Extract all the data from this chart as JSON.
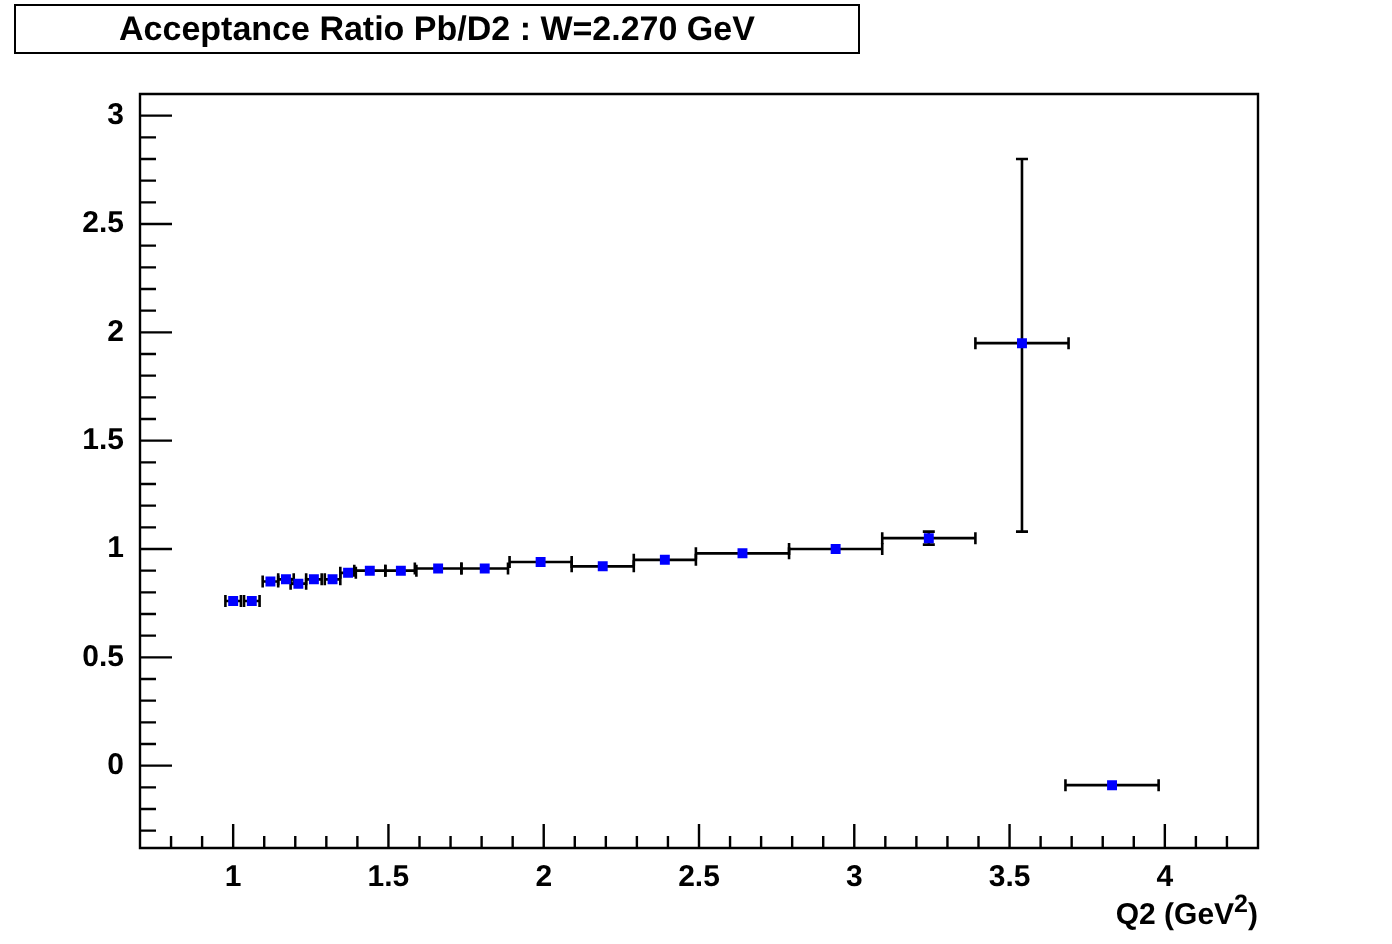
{
  "chart_data": {
    "type": "scatter",
    "title": "Acceptance Ratio Pb/D2 : W=2.270 GeV",
    "xlabel": "Q2 (GeV$^{2}$)",
    "x": [
      1.0,
      1.06,
      1.12,
      1.17,
      1.21,
      1.26,
      1.32,
      1.37,
      1.44,
      1.54,
      1.66,
      1.81,
      1.99,
      2.19,
      2.39,
      2.64,
      2.94,
      3.24,
      3.54,
      3.83
    ],
    "values": [
      0.76,
      0.76,
      0.85,
      0.86,
      0.84,
      0.86,
      0.86,
      0.89,
      0.9,
      0.9,
      0.91,
      0.91,
      0.94,
      0.92,
      0.95,
      0.98,
      1.0,
      1.05,
      1.95,
      -0.09
    ],
    "errors": [
      null,
      null,
      null,
      null,
      null,
      null,
      null,
      null,
      null,
      null,
      null,
      null,
      null,
      null,
      null,
      null,
      null,
      0.03,
      [
        1.08,
        2.8
      ],
      null
    ],
    "xerrors": [
      0.025,
      0.025,
      0.025,
      0.025,
      0.025,
      0.025,
      0.025,
      0.025,
      0.05,
      0.05,
      0.075,
      0.075,
      0.1,
      0.1,
      0.1,
      0.15,
      0.15,
      0.15,
      0.15,
      0.15
    ],
    "color": "#0000ff",
    "marker": "square",
    "xlim": [
      0.7,
      4.3
    ],
    "ylim": [
      -0.38,
      3.1
    ],
    "xticks": [
      {
        "value": 0.8,
        "label": null
      },
      {
        "value": 0.9,
        "label": null
      },
      1,
      {
        "value": 1.1,
        "label": null
      },
      {
        "value": 1.2,
        "label": null
      },
      {
        "value": 1.3,
        "label": null
      },
      {
        "value": 1.4,
        "label": null
      },
      1.5,
      {
        "value": 1.6,
        "label": null
      },
      {
        "value": 1.7,
        "label": null
      },
      {
        "value": 1.8,
        "label": null
      },
      {
        "value": 1.9,
        "label": null
      },
      2,
      {
        "value": 2.1,
        "label": null
      },
      {
        "value": 2.2,
        "label": null
      },
      {
        "value": 2.3,
        "label": null
      },
      {
        "value": 2.4,
        "label": null
      },
      2.5,
      {
        "value": 2.6,
        "label": null
      },
      {
        "value": 2.7,
        "label": null
      },
      {
        "value": 2.8,
        "label": null
      },
      {
        "value": 2.9,
        "label": null
      },
      3,
      {
        "value": 3.1,
        "label": null
      },
      {
        "value": 3.2,
        "label": null
      },
      {
        "value": 3.3,
        "label": null
      },
      {
        "value": 3.4,
        "label": null
      },
      3.5,
      {
        "value": 3.6,
        "label": null
      },
      {
        "value": 3.7,
        "label": null
      },
      {
        "value": 3.8,
        "label": null
      },
      {
        "value": 3.9,
        "label": null
      },
      4,
      {
        "value": 4.1,
        "label": null
      },
      {
        "value": 4.2,
        "label": null
      }
    ],
    "yticks": [
      {
        "value": -0.3,
        "label": null
      },
      {
        "value": -0.2,
        "label": null
      },
      {
        "value": -0.1,
        "label": null
      },
      0,
      {
        "value": 0.1,
        "label": null
      },
      {
        "value": 0.2,
        "label": null
      },
      {
        "value": 0.3,
        "label": null
      },
      {
        "value": 0.4,
        "label": null
      },
      0.5,
      {
        "value": 0.6,
        "label": null
      },
      {
        "value": 0.7,
        "label": null
      },
      {
        "value": 0.8,
        "label": null
      },
      {
        "value": 0.9,
        "label": null
      },
      1,
      {
        "value": 1.1,
        "label": null
      },
      {
        "value": 1.2,
        "label": null
      },
      {
        "value": 1.3,
        "label": null
      },
      {
        "value": 1.4,
        "label": null
      },
      1.5,
      {
        "value": 1.6,
        "label": null
      },
      {
        "value": 1.7,
        "label": null
      },
      {
        "value": 1.8,
        "label": null
      },
      {
        "value": 1.9,
        "label": null
      },
      2,
      {
        "value": 2.1,
        "label": null
      },
      {
        "value": 2.2,
        "label": null
      },
      {
        "value": 2.3,
        "label": null
      },
      {
        "value": 2.4,
        "label": null
      },
      2.5,
      {
        "value": 2.6,
        "label": null
      },
      {
        "value": 2.7,
        "label": null
      },
      {
        "value": 2.8,
        "label": null
      },
      {
        "value": 2.9,
        "label": null
      },
      3
    ],
    "grid": false,
    "legend": false
  }
}
